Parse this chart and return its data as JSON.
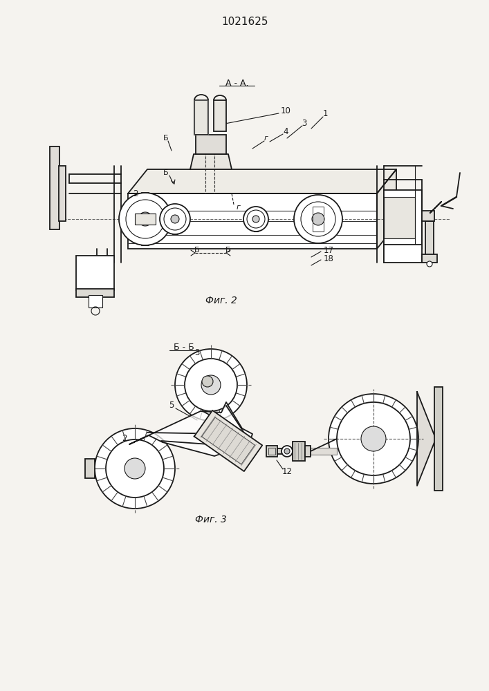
{
  "patent_number": "1021625",
  "fig2_caption": "Фиг. 2",
  "fig3_caption": "Фиг. 3",
  "bg_color": "#f5f3ef",
  "line_color": "#1a1a1a"
}
